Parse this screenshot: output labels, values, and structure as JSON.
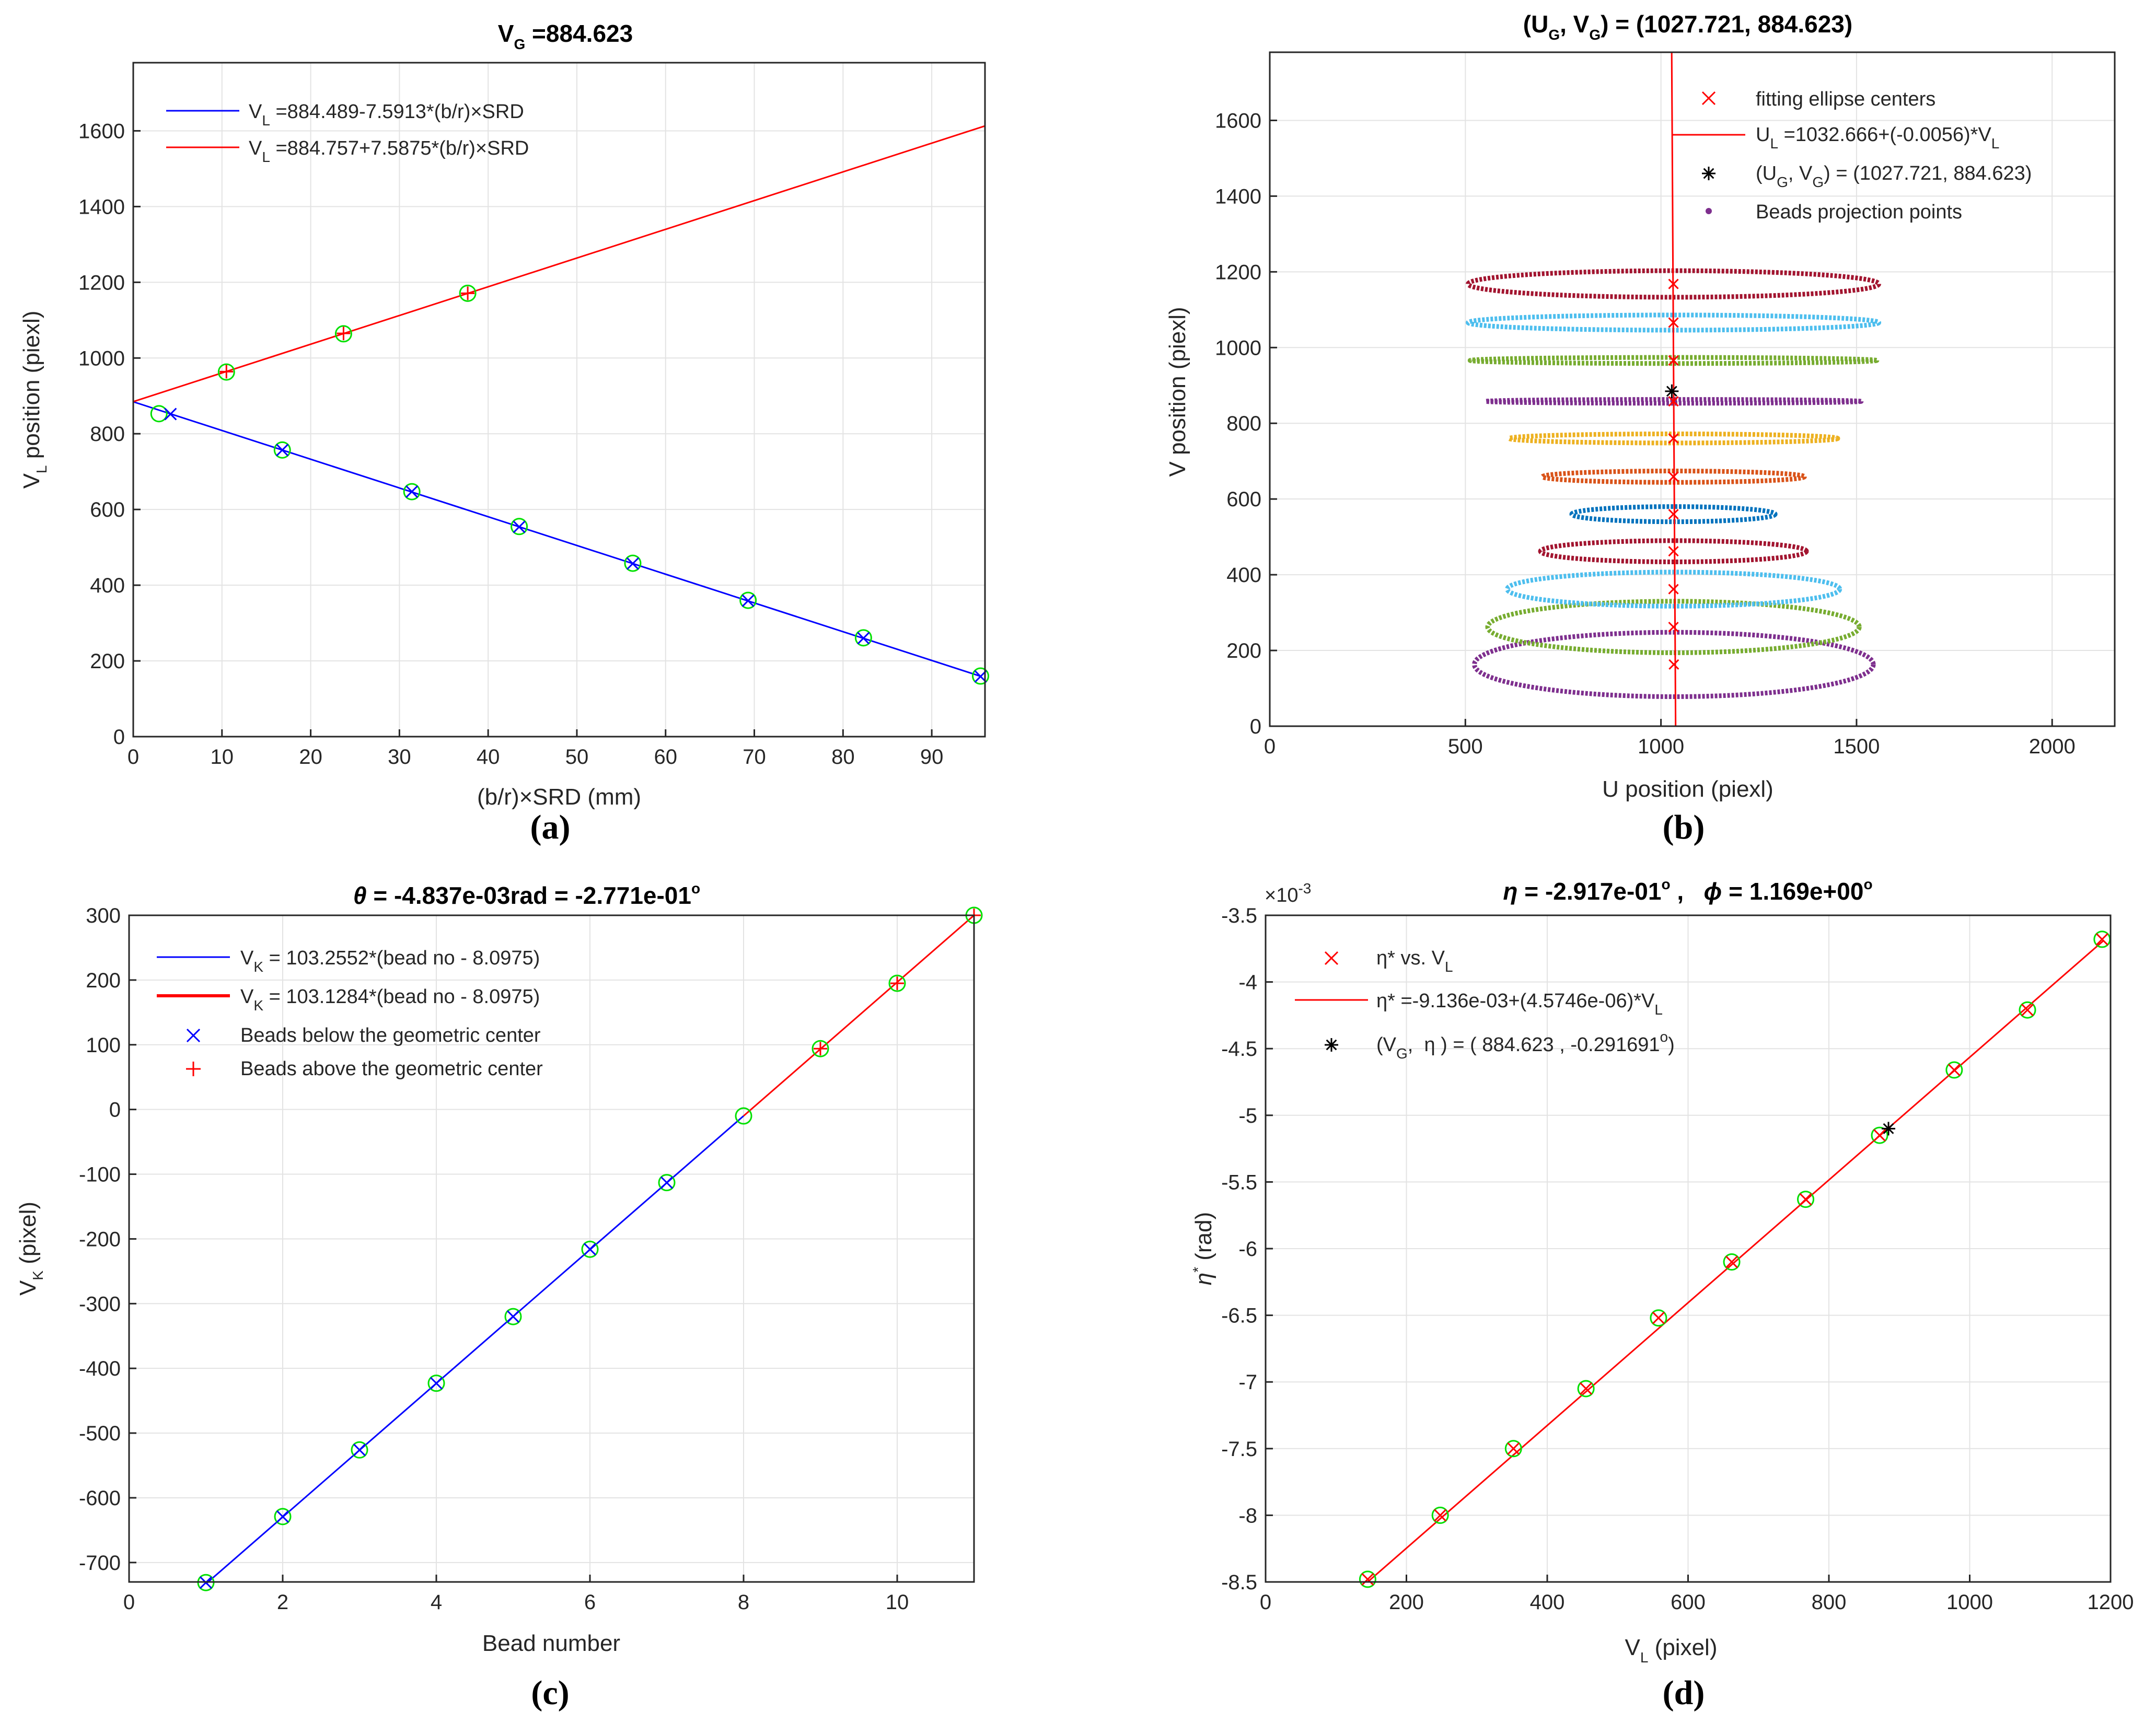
{
  "colors": {
    "blue": "#0000ff",
    "red": "#ff0000",
    "green": "#00e000",
    "black": "#000000",
    "rings": [
      "#7e2f8e",
      "#77ac30",
      "#4dbeee",
      "#a2142f",
      "#0072bd",
      "#d95319",
      "#edb120",
      "#7e2f8e",
      "#77ac30",
      "#4dbeee",
      "#a2142f"
    ]
  },
  "chart_data": [
    {
      "panel": "(a)",
      "type": "line",
      "title": {
        "main": "V",
        "sub": "G",
        "rest": " =884.623"
      },
      "xlabel": "(b/r)×SRD (mm)",
      "ylabel": {
        "main": "V",
        "sub": "L",
        "rest": " position (piexl)"
      },
      "xlim": [
        0,
        96
      ],
      "ylim": [
        0,
        1780
      ],
      "xticks": [
        "0",
        "10",
        "20",
        "30",
        "40",
        "50",
        "60",
        "70",
        "80",
        "90"
      ],
      "yticks": [
        "0",
        "200",
        "400",
        "600",
        "800",
        "1000",
        "1200",
        "1400",
        "1600"
      ],
      "grid": true,
      "legend_position": "top-left",
      "series": [
        {
          "name": {
            "main": "V",
            "sub": "L",
            "rest": " =884.489-7.5913*(b/r)×SRD"
          },
          "color": "blue",
          "marker": "x",
          "line": [
            [
              0,
              884.489
            ],
            [
              95.5,
              159.5
            ]
          ],
          "points": [
            [
              4.2,
              852
            ],
            [
              16.8,
              757
            ],
            [
              31.4,
              647
            ],
            [
              43.5,
              554
            ],
            [
              56.3,
              457
            ],
            [
              69.3,
              359
            ],
            [
              82.3,
              260
            ],
            [
              95.5,
              159
            ]
          ]
        },
        {
          "name": {
            "main": "V",
            "sub": "L",
            "rest": " =884.757+7.5875*(b/r)×SRD"
          },
          "color": "red",
          "marker": "+",
          "line": [
            [
              0,
              884.757
            ],
            [
              96,
              1613
            ]
          ],
          "points": [
            [
              10.5,
              964
            ],
            [
              23.7,
              1065
            ],
            [
              37.7,
              1171
            ]
          ]
        }
      ],
      "green_circles": [
        [
          2.9,
          853
        ],
        [
          10.5,
          963
        ],
        [
          16.8,
          757
        ],
        [
          23.7,
          1064
        ],
        [
          31.4,
          647
        ],
        [
          37.7,
          1171
        ],
        [
          43.5,
          555
        ],
        [
          56.3,
          458
        ],
        [
          69.3,
          360
        ],
        [
          82.3,
          261
        ],
        [
          95.5,
          160
        ]
      ]
    },
    {
      "panel": "(b)",
      "type": "scatter",
      "title": {
        "p1": "(U",
        "s1": "G",
        "p2": ", V",
        "s2": "G",
        "p3": ") = (1027.721, 884.623)"
      },
      "xlabel": "U position (piexl)",
      "ylabel": "V position (piexl)",
      "xlim": [
        0,
        2160
      ],
      "ylim": [
        0,
        1780
      ],
      "xticks": [
        "0",
        "500",
        "1000",
        "1500",
        "2000"
      ],
      "yticks": [
        "0",
        "200",
        "400",
        "600",
        "800",
        "1000",
        "1200",
        "1400",
        "1600"
      ],
      "grid": true,
      "legend_position": "top-right",
      "legend": [
        {
          "text": "fitting ellipse centers"
        },
        {
          "main": "U",
          "sub": "L",
          "rest": " =1032.666+(-0.0056)*V",
          "sub2": "L"
        },
        {
          "p1": "(U",
          "s1": "G",
          "p2": ", V",
          "s2": "G",
          "p3": ") = (1027.721, 884.623)"
        },
        {
          "text": "Beads projection points"
        }
      ],
      "fit_line": [
        [
          1037.5,
          -130
        ],
        [
          1027.5,
          1780
        ]
      ],
      "center_point": [
        1027.721,
        884.623
      ],
      "ellipses": [
        {
          "cx": 1033,
          "cy": 163,
          "rx": 510,
          "ry": 85
        },
        {
          "cx": 1032,
          "cy": 262,
          "rx": 475,
          "ry": 68
        },
        {
          "cx": 1032,
          "cy": 362,
          "rx": 425,
          "ry": 45
        },
        {
          "cx": 1032,
          "cy": 462,
          "rx": 340,
          "ry": 28
        },
        {
          "cx": 1032,
          "cy": 560,
          "rx": 260,
          "ry": 20
        },
        {
          "cx": 1032,
          "cy": 659,
          "rx": 335,
          "ry": 15
        },
        {
          "cx": 1032,
          "cy": 760,
          "rx": 420,
          "ry": 12
        },
        {
          "cx": 1032,
          "cy": 858,
          "rx": 480,
          "ry": 5
        },
        {
          "cx": 1032,
          "cy": 966,
          "rx": 520,
          "ry": 8
        },
        {
          "cx": 1032,
          "cy": 1066,
          "rx": 525,
          "ry": 20
        },
        {
          "cx": 1032,
          "cy": 1168,
          "rx": 525,
          "ry": 35
        }
      ]
    },
    {
      "panel": "(c)",
      "type": "line",
      "title": {
        "theta": "θ",
        "rest": " = -4.837e-03rad = -2.771e-01",
        "sup": "o"
      },
      "xlabel": "Bead number",
      "ylabel": {
        "main": "V",
        "sub": "K",
        "rest": " (pixel)"
      },
      "xlim": [
        0,
        11
      ],
      "ylim": [
        -730,
        300
      ],
      "xticks": [
        "0",
        "2",
        "4",
        "6",
        "8",
        "10"
      ],
      "yticks": [
        "-700",
        "-600",
        "-500",
        "-400",
        "-300",
        "-200",
        "-100",
        "0",
        "100",
        "200",
        "300"
      ],
      "grid": true,
      "legend_position": "top-left",
      "legend": [
        {
          "main": "V",
          "sub": "K",
          "rest": " = 103.2552*(bead no - 8.0975)",
          "color": "blue",
          "kind": "line"
        },
        {
          "main": "V",
          "sub": "K",
          "rest": " = 103.1284*(bead no - 8.0975)",
          "color": "red",
          "kind": "thickline"
        },
        {
          "text": "Beads below the geometric center",
          "color": "blue",
          "kind": "x"
        },
        {
          "text": "Beads above the geometric center",
          "color": "red",
          "kind": "+"
        }
      ],
      "blue_line": [
        [
          1,
          -733
        ],
        [
          8.0,
          -10
        ]
      ],
      "red_line": [
        [
          8.0,
          -10
        ],
        [
          11,
          300
        ]
      ],
      "blue_points": [
        [
          1,
          -731
        ],
        [
          2,
          -629
        ],
        [
          3,
          -526
        ],
        [
          4,
          -423
        ],
        [
          5,
          -320
        ],
        [
          6,
          -216
        ],
        [
          7,
          -113
        ]
      ],
      "red_points": [
        [
          9,
          94
        ],
        [
          10,
          195
        ],
        [
          11,
          300
        ]
      ],
      "green_circles": [
        [
          1,
          -731
        ],
        [
          2,
          -629
        ],
        [
          3,
          -526
        ],
        [
          4,
          -423
        ],
        [
          5,
          -320
        ],
        [
          6,
          -216
        ],
        [
          7,
          -113
        ],
        [
          8,
          -10
        ],
        [
          9,
          94
        ],
        [
          10,
          195
        ],
        [
          11,
          300
        ]
      ]
    },
    {
      "panel": "(d)",
      "type": "line",
      "title": {
        "eta": "η",
        "r1": " = -2.917e-01",
        "sup1": "o",
        "gap": " ,   ",
        "phi": "ϕ",
        "r2": " = 1.169e+00",
        "sup2": "o"
      },
      "exponent_label": {
        "base": "×10",
        "exp": "-3"
      },
      "xlabel": {
        "main": "V",
        "sub": "L",
        "rest": " (pixel)"
      },
      "ylabel": {
        "main": "η",
        "sup": "*",
        "rest": " (rad)"
      },
      "xlim": [
        0,
        1200
      ],
      "ylim": [
        -8.5,
        -3.5
      ],
      "xticks": [
        "0",
        "200",
        "400",
        "600",
        "800",
        "1000",
        "1200"
      ],
      "yticks": [
        "-8.5",
        "-8",
        "-7.5",
        "-7",
        "-6.5",
        "-6",
        "-5.5",
        "-5",
        "-4.5",
        "-4",
        "-3.5"
      ],
      "grid": true,
      "legend_position": "top-left",
      "legend": [
        {
          "main": "η* vs. V",
          "sub": "L",
          "color": "red",
          "kind": "x"
        },
        {
          "main": "η* =-9.136e-03+(4.5746e-06)*V",
          "sub": "L",
          "color": "red",
          "kind": "line"
        },
        {
          "p1": "(V",
          "s1": "G",
          "p2": ",  η ) = ( 884.623 , -0.291691",
          "sup": "o",
          "p3": ")",
          "color": "black",
          "kind": "*"
        }
      ],
      "fit_line": [
        [
          145,
          -8.5
        ],
        [
          1190,
          -3.69
        ]
      ],
      "red_points": [
        [
          145,
          -8.48
        ],
        [
          248,
          -8.0
        ],
        [
          352,
          -7.5
        ],
        [
          455,
          -7.05
        ],
        [
          558,
          -6.52
        ],
        [
          662,
          -6.1
        ],
        [
          767,
          -5.63
        ],
        [
          872,
          -5.15
        ],
        [
          978,
          -4.66
        ],
        [
          1082,
          -4.21
        ],
        [
          1188,
          -3.68
        ]
      ],
      "green_circles": [
        [
          145,
          -8.48
        ],
        [
          248,
          -8.0
        ],
        [
          352,
          -7.5
        ],
        [
          455,
          -7.05
        ],
        [
          558,
          -6.52
        ],
        [
          662,
          -6.1
        ],
        [
          767,
          -5.63
        ],
        [
          872,
          -5.15
        ],
        [
          978,
          -4.66
        ],
        [
          1082,
          -4.21
        ],
        [
          1188,
          -3.68
        ]
      ],
      "star": [
        884.623,
        -5.1
      ]
    }
  ]
}
